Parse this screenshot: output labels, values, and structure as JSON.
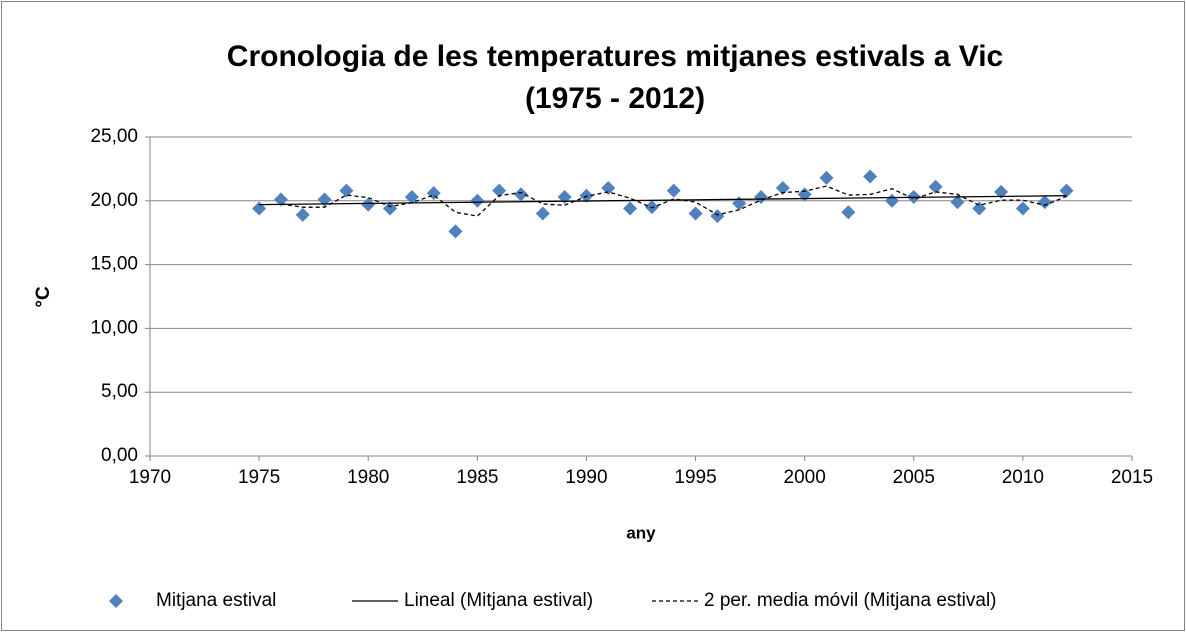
{
  "chart_data": {
    "type": "scatter",
    "title": [
      "Cronologia de les temperatures mitjanes estivals a Vic",
      "(1975 - 2012)"
    ],
    "xlabel": "any",
    "ylabel": "°C",
    "xlim": [
      1970,
      2015
    ],
    "xticks": [
      1970,
      1975,
      1980,
      1985,
      1990,
      1995,
      2000,
      2005,
      2010,
      2015
    ],
    "ylim": [
      0,
      25
    ],
    "yticks": [
      {
        "value": 0,
        "label": "0,00"
      },
      {
        "value": 5,
        "label": "5,00"
      },
      {
        "value": 10,
        "label": "10,00"
      },
      {
        "value": 15,
        "label": "15,00"
      },
      {
        "value": 20,
        "label": "20,00"
      },
      {
        "value": 25,
        "label": "25,00"
      }
    ],
    "grid": true,
    "legend": "bottom",
    "series": [
      {
        "name": "Mitjana estival",
        "color": "#4f81bd",
        "style": "marker",
        "x": [
          1975,
          1976,
          1977,
          1978,
          1979,
          1980,
          1981,
          1982,
          1983,
          1984,
          1985,
          1986,
          1987,
          1988,
          1989,
          1990,
          1991,
          1992,
          1993,
          1994,
          1995,
          1996,
          1997,
          1998,
          1999,
          2000,
          2001,
          2002,
          2003,
          2004,
          2005,
          2006,
          2007,
          2008,
          2009,
          2010,
          2011,
          2012
        ],
        "values": [
          19.4,
          20.1,
          18.9,
          20.1,
          20.8,
          19.7,
          19.4,
          20.3,
          20.6,
          17.6,
          20.0,
          20.8,
          20.5,
          19.0,
          20.3,
          20.4,
          21.0,
          19.4,
          19.5,
          20.8,
          19.0,
          18.8,
          19.8,
          20.3,
          21.0,
          20.5,
          21.8,
          19.1,
          21.9,
          20.0,
          20.3,
          21.1,
          19.9,
          19.4,
          20.7,
          19.4,
          19.9,
          20.8
        ]
      },
      {
        "name": "Lineal (Mitjana estival)",
        "color": "#000000",
        "style": "solid",
        "x": [
          1975,
          2012
        ],
        "values": [
          19.7,
          20.4
        ]
      },
      {
        "name": "2 per. media móvil (Mitjana estival)",
        "color": "#000000",
        "style": "dashed",
        "x": [
          1975,
          1976,
          1977,
          1978,
          1979,
          1980,
          1981,
          1982,
          1983,
          1984,
          1985,
          1986,
          1987,
          1988,
          1989,
          1990,
          1991,
          1992,
          1993,
          1994,
          1995,
          1996,
          1997,
          1998,
          1999,
          2000,
          2001,
          2002,
          2003,
          2004,
          2005,
          2006,
          2007,
          2008,
          2009,
          2010,
          2011,
          2012
        ],
        "values": [
          null,
          19.75,
          19.5,
          19.5,
          20.45,
          20.25,
          19.55,
          19.85,
          20.45,
          19.1,
          18.8,
          20.4,
          20.65,
          19.75,
          19.65,
          20.35,
          20.7,
          20.2,
          19.45,
          20.15,
          19.9,
          18.9,
          19.3,
          20.05,
          20.65,
          20.75,
          21.15,
          20.45,
          20.5,
          20.95,
          20.15,
          20.7,
          20.5,
          19.65,
          20.05,
          20.05,
          19.65,
          20.35
        ]
      }
    ]
  }
}
